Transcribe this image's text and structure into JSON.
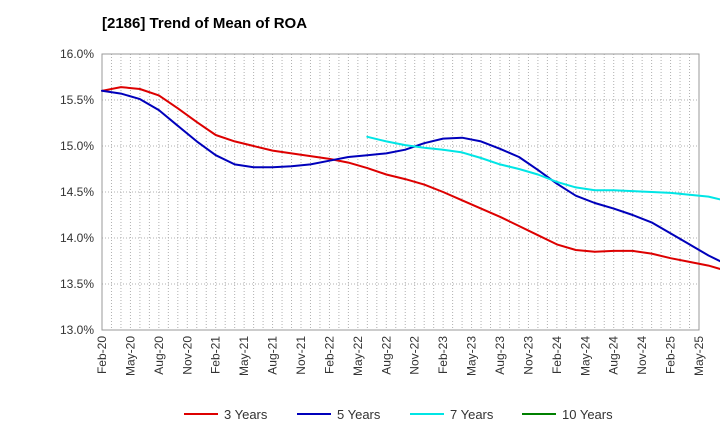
{
  "chart_data": {
    "type": "line",
    "title": "[2186]  Trend of Mean of ROA",
    "xlabel": "",
    "ylabel": "",
    "ylim": [
      13.0,
      16.0
    ],
    "y_ticks": [
      "13.0%",
      "13.5%",
      "14.0%",
      "14.5%",
      "15.0%",
      "15.5%",
      "16.0%"
    ],
    "y_tick_values": [
      13.0,
      13.5,
      14.0,
      14.5,
      15.0,
      15.5,
      16.0
    ],
    "x_tick_labels": [
      "Feb-20",
      "May-20",
      "Aug-20",
      "Nov-20",
      "Feb-21",
      "May-21",
      "Aug-21",
      "Nov-21",
      "Feb-22",
      "May-22",
      "Aug-22",
      "Nov-22",
      "Feb-23",
      "May-23",
      "Aug-23",
      "Nov-23",
      "Feb-24",
      "May-24",
      "Aug-24",
      "Nov-24",
      "Feb-25",
      "May-25"
    ],
    "grid": true,
    "legend_position": "bottom",
    "series": [
      {
        "name": "3 Years",
        "color": "#dd0000",
        "values": [
          15.6,
          15.64,
          15.62,
          15.55,
          15.41,
          15.26,
          15.12,
          15.05,
          15.0,
          14.95,
          14.92,
          14.89,
          14.86,
          14.82,
          14.76,
          14.69,
          14.64,
          14.58,
          14.5,
          14.41,
          14.32,
          14.23,
          14.13,
          14.03,
          13.93,
          13.87,
          13.85,
          13.86,
          13.86,
          13.83,
          13.78,
          13.74,
          13.7,
          13.64,
          13.54
        ]
      },
      {
        "name": "5 Years",
        "color": "#0000bb",
        "values": [
          15.6,
          15.57,
          15.51,
          15.39,
          15.22,
          15.05,
          14.9,
          14.8,
          14.77,
          14.77,
          14.78,
          14.8,
          14.84,
          14.88,
          14.9,
          14.92,
          14.96,
          15.03,
          15.08,
          15.09,
          15.05,
          14.97,
          14.88,
          14.74,
          14.59,
          14.46,
          14.38,
          14.32,
          14.25,
          14.17,
          14.05,
          13.93,
          13.81,
          13.71,
          13.65
        ]
      },
      {
        "name": "7 Years",
        "color": "#00e5e5",
        "values": [
          null,
          null,
          null,
          null,
          null,
          null,
          null,
          null,
          null,
          null,
          null,
          null,
          null,
          null,
          15.1,
          15.05,
          15.01,
          14.98,
          14.96,
          14.93,
          14.87,
          14.8,
          14.75,
          14.69,
          14.61,
          14.55,
          14.52,
          14.52,
          14.51,
          14.5,
          14.49,
          14.47,
          14.45,
          14.4,
          14.35
        ]
      },
      {
        "name": "10 Years",
        "color": "#008000",
        "values": []
      }
    ]
  }
}
